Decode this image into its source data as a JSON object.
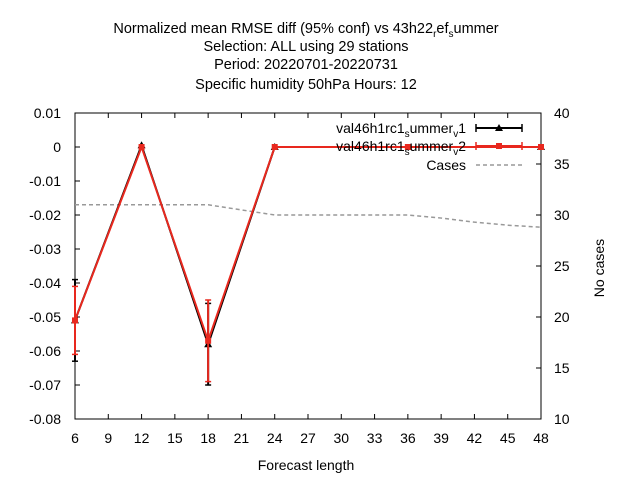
{
  "chart_data": {
    "type": "line",
    "title_lines": [
      "Normalized mean RMSE diff (95% conf) vs 43h22",
      "Selection: ALL using    29 stations",
      "Period: 20220701-20220731",
      "Specific humidity 50hPa   Hours:  12"
    ],
    "title_sub": {
      "r": "r",
      "ef": "ef",
      "s": "s",
      "ummer": "ummer"
    },
    "xlabel": "Forecast length",
    "ylabel": "",
    "y2label": "No cases",
    "xlim": [
      6,
      48
    ],
    "ylim": [
      -0.08,
      0.01
    ],
    "y2lim": [
      10,
      40
    ],
    "xticks": [
      6,
      9,
      12,
      15,
      18,
      21,
      24,
      27,
      30,
      33,
      36,
      39,
      42,
      45,
      48
    ],
    "yticks": [
      0.01,
      0,
      -0.01,
      -0.02,
      -0.03,
      -0.04,
      -0.05,
      -0.06,
      -0.07,
      -0.08
    ],
    "ytick_labels": [
      "0.01",
      "0",
      "-0.01",
      "-0.02",
      "-0.03",
      "-0.04",
      "-0.05",
      "-0.06",
      "-0.07",
      "-0.08"
    ],
    "y2ticks": [
      40,
      35,
      30,
      25,
      20,
      15,
      10
    ],
    "legend_position": "top-right",
    "series": [
      {
        "name_main": "val46h1rc1",
        "name_sub": "s",
        "name_mid": "ummer",
        "name_sub2": "v",
        "name_end": "1",
        "color": "#000000",
        "marker": "triangle",
        "x": [
          6,
          12,
          18,
          24,
          48
        ],
        "y": [
          -0.051,
          0.0005,
          -0.058,
          0.0,
          0.0
        ],
        "err_low": [
          -0.063,
          0.0005,
          -0.07,
          0.0,
          0.0
        ],
        "err_high": [
          -0.039,
          0.0005,
          -0.046,
          0.0,
          0.0
        ]
      },
      {
        "name_main": "val46h1rc1",
        "name_sub": "s",
        "name_mid": "ummer",
        "name_sub2": "v",
        "name_end": "2",
        "color": "#e8281e",
        "marker": "square",
        "x": [
          6,
          12,
          18,
          24,
          36,
          48
        ],
        "y": [
          -0.051,
          0.0,
          -0.057,
          0.0,
          0.0,
          0.0
        ],
        "err_low": [
          -0.061,
          0.0,
          -0.069,
          0.0,
          0.0,
          0.0
        ],
        "err_high": [
          -0.041,
          0.0,
          -0.045,
          0.0,
          0.0,
          0.0
        ]
      },
      {
        "name": "Cases",
        "color": "#999999",
        "dashed": true,
        "axis": "y2",
        "x": [
          6,
          9,
          12,
          15,
          18,
          21,
          24,
          27,
          30,
          33,
          36,
          39,
          42,
          45,
          48
        ],
        "y": [
          31,
          31,
          31,
          31,
          31,
          30.5,
          30,
          30,
          30,
          30,
          30,
          29.7,
          29.3,
          29,
          28.8
        ]
      }
    ]
  }
}
